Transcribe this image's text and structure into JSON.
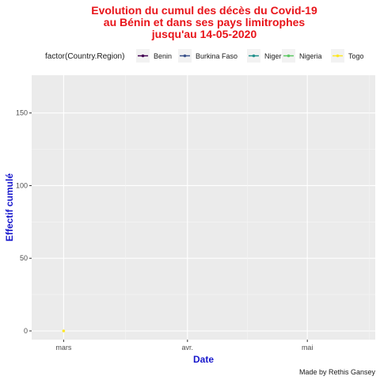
{
  "chart_data": {
    "type": "line",
    "title_lines": [
      "Evolution du cumul des décès du Covid-19",
      "au Bénin et dans ses  pays limitrophes",
      "jusqu'au 14-05-2020"
    ],
    "xlabel": "Date",
    "ylabel": "Effectif cumulé",
    "caption": "Made by Rethis Gansey",
    "legend_title": "factor(Country.Region)",
    "legend_position": "top",
    "grid": true,
    "x_ticks": [
      {
        "label": "mars",
        "date": "2020-03-01"
      },
      {
        "label": "avr.",
        "date": "2020-04-01"
      },
      {
        "label": "mai",
        "date": "2020-05-01"
      }
    ],
    "xlim": [
      "2020-02-22",
      "2020-05-18"
    ],
    "y_ticks": [
      0,
      50,
      100,
      150
    ],
    "ylim": [
      -6,
      176
    ],
    "series": [
      {
        "name": "Benin",
        "color": "#440154",
        "points": []
      },
      {
        "name": "Burkina Faso",
        "color": "#3b528b",
        "points": []
      },
      {
        "name": "Niger",
        "color": "#21908c",
        "points": []
      },
      {
        "name": "Nigeria",
        "color": "#5dc863",
        "points": []
      },
      {
        "name": "Togo",
        "color": "#fde725",
        "points": [
          {
            "date": "2020-03-01",
            "value": 0
          }
        ]
      }
    ]
  }
}
